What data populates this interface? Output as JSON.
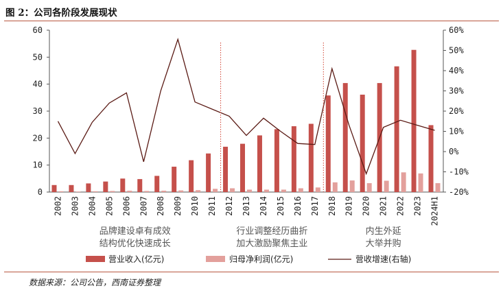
{
  "title": "图 2：公司各阶段发展现状",
  "source": "数据来源：公司公告，西南证券整理",
  "colors": {
    "revenue": "#c5504b",
    "profit": "#e3a09c",
    "growth": "#5a1a14",
    "divider": "#d04030",
    "accent": "#b8563f"
  },
  "chart_data": {
    "type": "bar",
    "categories": [
      "2002",
      "2003",
      "2004",
      "2005",
      "2006",
      "2007",
      "2008",
      "2009",
      "2010",
      "2011",
      "2012",
      "2013",
      "2014",
      "2015",
      "2016",
      "2017",
      "2018",
      "2019",
      "2020",
      "2021",
      "2022",
      "2023",
      "2024H1"
    ],
    "series": [
      {
        "name": "营业收入(亿元)",
        "type": "bar",
        "axis": "left",
        "values": [
          2.6,
          2.6,
          3.2,
          3.9,
          5.0,
          4.8,
          6.0,
          9.4,
          11.8,
          14.3,
          16.8,
          17.9,
          21.0,
          23.3,
          24.4,
          25.3,
          35.8,
          40.4,
          36.1,
          40.4,
          46.6,
          52.7,
          24.8
        ]
      },
      {
        "name": "归母净利润(亿元)",
        "type": "bar",
        "axis": "left",
        "values": [
          0.3,
          0.2,
          0.3,
          0.4,
          0.5,
          0.4,
          0.5,
          0.6,
          0.7,
          1.2,
          1.4,
          0.9,
          0.9,
          0.9,
          1.4,
          1.7,
          3.6,
          4.3,
          3.3,
          4.2,
          7.3,
          6.9,
          3.3
        ]
      },
      {
        "name": "营收增速(右轴)",
        "type": "line",
        "axis": "right",
        "values": [
          15.0,
          -1.0,
          14.5,
          24.0,
          29.0,
          -5.0,
          30.0,
          55.5,
          24.5,
          21.0,
          17.5,
          8.0,
          16.5,
          10.0,
          4.0,
          3.5,
          41.0,
          13.0,
          -11.0,
          12.0,
          15.5,
          13.0,
          10.5
        ]
      }
    ],
    "y_left": {
      "ylim": [
        0,
        60
      ],
      "ticks": [
        "0",
        "10",
        "20",
        "30",
        "40",
        "50",
        "60"
      ]
    },
    "y_right": {
      "ylim": [
        -20,
        60
      ],
      "ticks": [
        "-20%",
        "-10%",
        "0%",
        "10%",
        "20%",
        "30%",
        "40%",
        "50%",
        "60%"
      ]
    },
    "phases": [
      {
        "line1": "品牌建设卓有成效",
        "line2": "结构优化快速成长"
      },
      {
        "line1": "行业调整经历曲折",
        "line2": "加大激励聚焦主业"
      },
      {
        "line1": "内生外延",
        "line2": "大举并购"
      }
    ],
    "phase_breaks_after": [
      "2011",
      "2017"
    ],
    "legend_position": "bottom",
    "grid": false
  }
}
